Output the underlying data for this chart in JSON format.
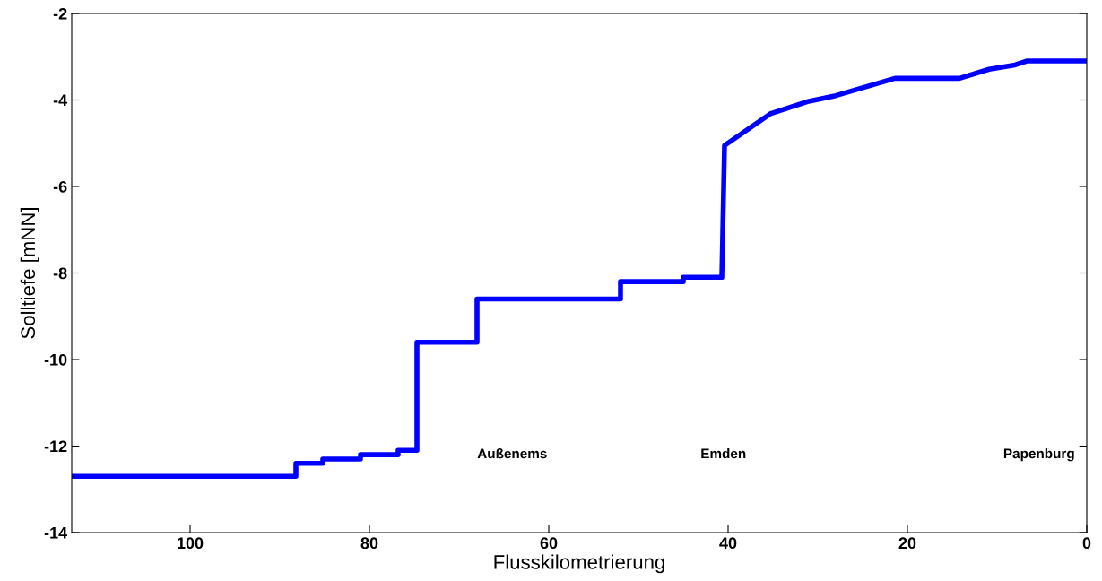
{
  "chart_data": {
    "type": "line",
    "xlabel": "Flusskilometrierung",
    "ylabel": "Solltiefe [mNN]",
    "x": [
      113.2,
      88.2,
      88.2,
      85.2,
      85.2,
      81,
      81,
      76.8,
      76.8,
      74.7,
      74.7,
      68,
      68,
      52,
      52,
      45,
      45,
      40.7,
      40.4,
      35.3,
      31,
      28,
      21.4,
      14.2,
      10.9,
      8,
      6.7,
      0
    ],
    "series": [
      {
        "color": "#0000ff",
        "values": [
          -12.7,
          -12.7,
          -12.4,
          -12.4,
          -12.3,
          -12.3,
          -12.2,
          -12.2,
          -12.1,
          -12.1,
          -9.6,
          -9.6,
          -8.6,
          -8.6,
          -8.2,
          -8.2,
          -8.1,
          -8.1,
          -5.05,
          -4.32,
          -4.03,
          -3.9,
          -3.5,
          -3.5,
          -3.29,
          -3.19,
          -3.1,
          -3.1
        ]
      }
    ],
    "xlim": [
      113.2,
      0
    ],
    "xticks": [
      100,
      80,
      60,
      40,
      20,
      0
    ],
    "ylim": [
      -14,
      -2
    ],
    "yticks": [
      -14,
      -12,
      -10,
      -8,
      -6,
      -4,
      -2
    ],
    "grid": false,
    "legend": false,
    "marker": "none",
    "line_style": "solid",
    "annotations": [
      "Außenems",
      "Emden",
      "Papenburg"
    ]
  }
}
